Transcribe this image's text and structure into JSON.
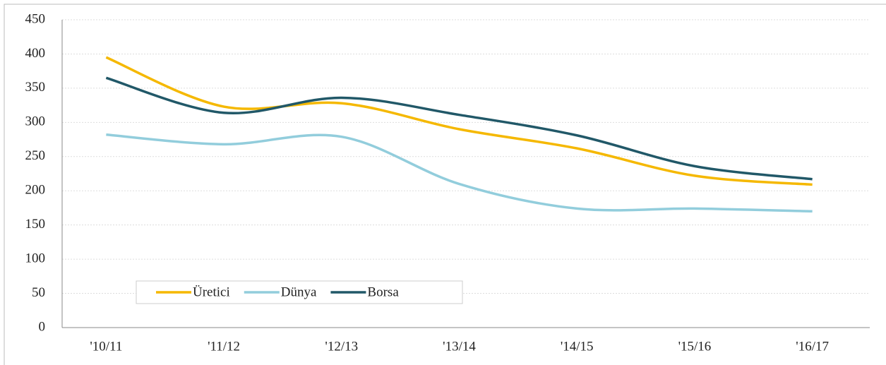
{
  "chart_data": {
    "type": "line",
    "categories": [
      "'10/11",
      "'11/12",
      "'12/13",
      "'13/14",
      "'14/15",
      "'15/16",
      "'16/17"
    ],
    "series": [
      {
        "name": "Üretici",
        "color": "#f5b800",
        "values": [
          395,
          323,
          328,
          290,
          262,
          222,
          209
        ]
      },
      {
        "name": "Dünya",
        "color": "#92cddc",
        "values": [
          282,
          268,
          279,
          210,
          174,
          174,
          170
        ]
      },
      {
        "name": "Borsa",
        "color": "#215868",
        "values": [
          365,
          314,
          336,
          311,
          281,
          236,
          217
        ]
      }
    ],
    "ylim": [
      0,
      450
    ],
    "yticks": [
      0,
      50,
      100,
      150,
      200,
      250,
      300,
      350,
      400,
      450
    ],
    "grid": true,
    "smooth": true,
    "legend": "lower left"
  }
}
